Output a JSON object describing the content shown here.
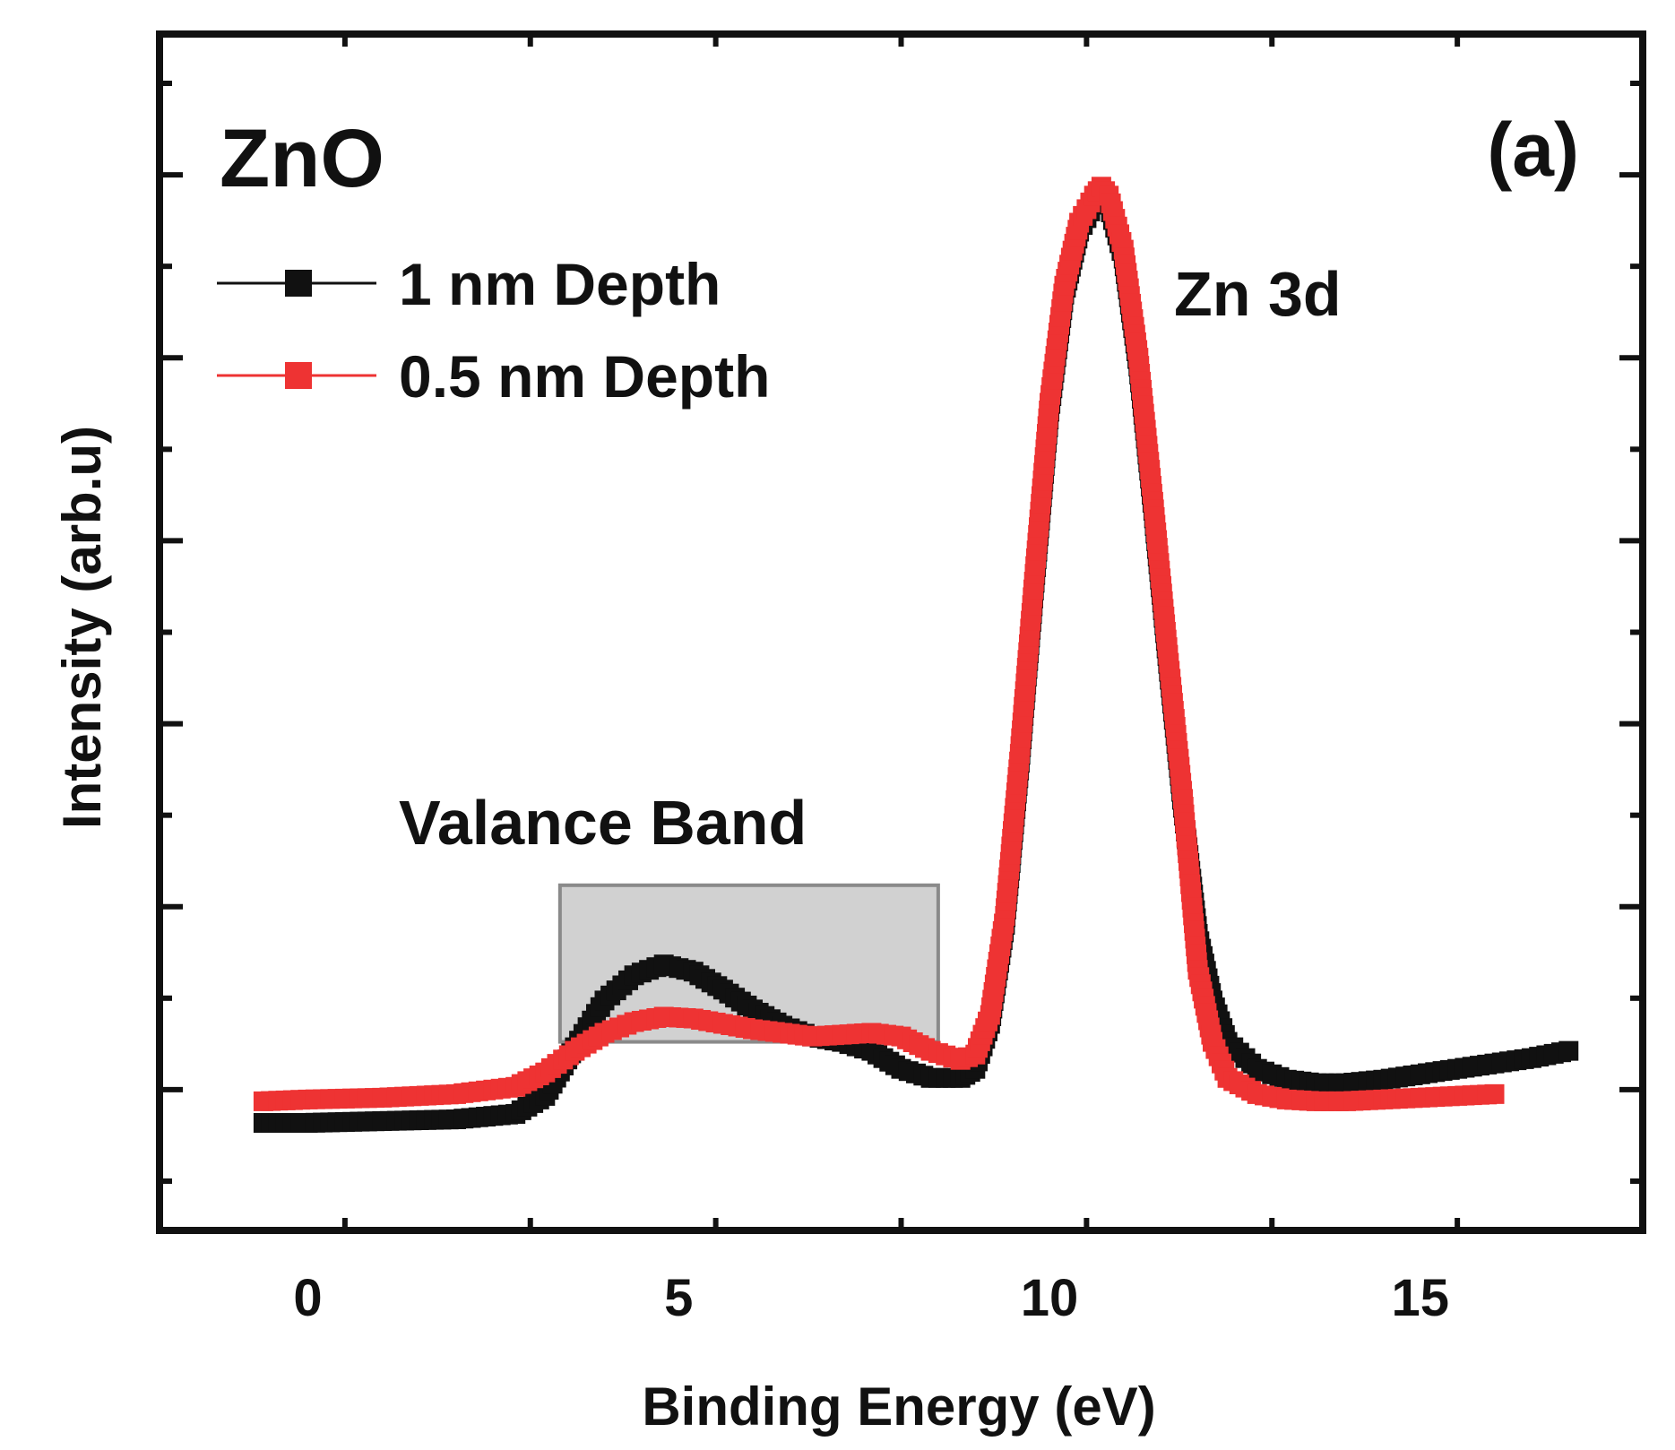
{
  "chart_data": {
    "type": "scatter",
    "title": "",
    "xlabel": "Binding Energy (eV)",
    "ylabel": "Intensity (arb.u)",
    "xlim": [
      -2,
      18
    ],
    "ylim": [
      0,
      5.5
    ],
    "xticks": [
      0,
      5,
      10,
      15
    ],
    "y_tick_labels_shown": false,
    "grid": false,
    "legend_position": "top-left",
    "annotations": {
      "material": "ZnO",
      "panel": "(a)",
      "peak_label": "Zn 3d",
      "band_label": "Valance Band"
    },
    "highlight_region": {
      "x": [
        3.4,
        8.5
      ],
      "y": [
        0.45,
        1.32
      ],
      "color": "#9a9a9a"
    },
    "series": [
      {
        "name": "1 nm Depth",
        "color": "#111111",
        "marker": "square",
        "x": [
          -0.6,
          0,
          1,
          2,
          2.8,
          3.2,
          3.6,
          4.0,
          4.4,
          4.8,
          5.2,
          5.6,
          6.0,
          6.4,
          6.8,
          7.2,
          7.6,
          8.0,
          8.4,
          8.8,
          9.0,
          9.2,
          9.4,
          9.6,
          9.8,
          10.0,
          10.2,
          10.4,
          10.6,
          10.7,
          10.8,
          11.0,
          11.2,
          11.4,
          11.6,
          11.8,
          12.0,
          12.2,
          12.4,
          12.8,
          13.2,
          13.6,
          14.0,
          14.5,
          15.0,
          15.5,
          16.0,
          16.5,
          17.0
        ],
        "y": [
          0.0,
          0.0,
          0.01,
          0.02,
          0.05,
          0.15,
          0.42,
          0.68,
          0.82,
          0.88,
          0.84,
          0.74,
          0.63,
          0.54,
          0.48,
          0.45,
          0.4,
          0.3,
          0.25,
          0.25,
          0.3,
          0.55,
          1.1,
          2.0,
          3.0,
          3.95,
          4.6,
          4.95,
          5.1,
          5.15,
          5.1,
          4.8,
          4.2,
          3.4,
          2.55,
          1.75,
          1.05,
          0.68,
          0.45,
          0.3,
          0.24,
          0.22,
          0.22,
          0.24,
          0.27,
          0.3,
          0.33,
          0.36,
          0.4
        ]
      },
      {
        "name": "0.5 nm Depth",
        "color": "#ee3333",
        "marker": "square",
        "x": [
          -0.6,
          0,
          1,
          2,
          2.8,
          3.2,
          3.6,
          4.0,
          4.4,
          4.8,
          5.2,
          5.6,
          6.0,
          6.4,
          6.8,
          7.2,
          7.6,
          8.0,
          8.4,
          8.8,
          9.0,
          9.2,
          9.4,
          9.6,
          9.8,
          10.0,
          10.2,
          10.4,
          10.6,
          10.7,
          10.8,
          11.0,
          11.2,
          11.4,
          11.6,
          11.8,
          12.0,
          12.2,
          12.4,
          12.8,
          13.2,
          13.6,
          14.0,
          14.5,
          15.0,
          15.5,
          16.0
        ],
        "y": [
          0.12,
          0.13,
          0.14,
          0.16,
          0.2,
          0.28,
          0.4,
          0.5,
          0.56,
          0.59,
          0.58,
          0.55,
          0.52,
          0.5,
          0.48,
          0.49,
          0.5,
          0.48,
          0.4,
          0.35,
          0.38,
          0.6,
          1.15,
          2.05,
          3.05,
          4.0,
          4.65,
          5.0,
          5.15,
          5.2,
          5.15,
          4.85,
          4.25,
          3.45,
          2.6,
          1.8,
          0.85,
          0.45,
          0.25,
          0.16,
          0.13,
          0.12,
          0.12,
          0.13,
          0.14,
          0.15,
          0.16
        ]
      }
    ]
  }
}
